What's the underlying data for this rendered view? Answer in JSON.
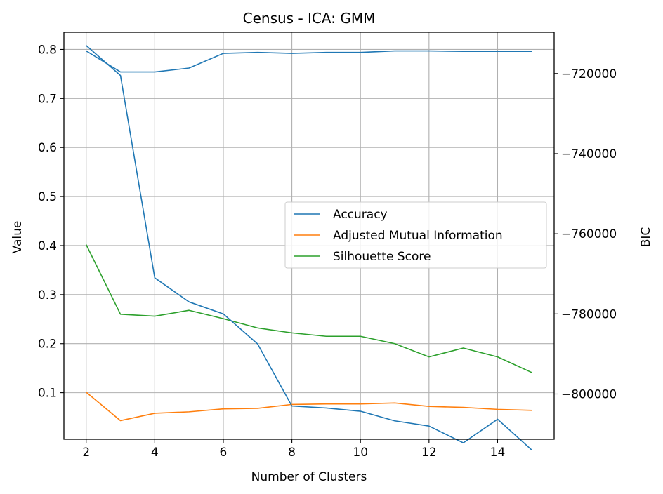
{
  "chart_data": {
    "type": "line",
    "title": "Census - ICA: GMM",
    "xlabel": "Number of Clusters",
    "ylabel": "Value",
    "y2label": "BIC",
    "x": [
      2,
      3,
      4,
      5,
      6,
      7,
      8,
      9,
      10,
      11,
      12,
      13,
      14,
      15
    ],
    "xlim": [
      1.35,
      15.65
    ],
    "ylim": [
      0.005,
      0.835
    ],
    "y2lim": [
      -811300,
      -709700
    ],
    "xticks": [
      "2",
      "4",
      "6",
      "8",
      "10",
      "12",
      "14"
    ],
    "xtick_values": [
      2,
      4,
      6,
      8,
      10,
      12,
      14
    ],
    "yticks": [
      "0.1",
      "0.2",
      "0.3",
      "0.4",
      "0.5",
      "0.6",
      "0.7",
      "0.8"
    ],
    "ytick_values": [
      0.1,
      0.2,
      0.3,
      0.4,
      0.5,
      0.6,
      0.7,
      0.8
    ],
    "y2ticks": [
      "−720000",
      "−740000",
      "−760000",
      "−780000",
      "−800000"
    ],
    "y2tick_values": [
      -720000,
      -740000,
      -760000,
      -780000,
      -800000
    ],
    "grid": true,
    "legend_position": "center-right",
    "series": [
      {
        "name": "Accuracy",
        "axis": "left",
        "color": "#1f77b4",
        "values": [
          0.797,
          0.754,
          0.754,
          0.762,
          0.792,
          0.794,
          0.792,
          0.794,
          0.794,
          0.797,
          0.797,
          0.796,
          0.796,
          0.796
        ]
      },
      {
        "name": "Adjusted Mutual Information",
        "axis": "left",
        "color": "#ff7f0e",
        "values": [
          0.101,
          0.043,
          0.058,
          0.061,
          0.067,
          0.068,
          0.076,
          0.077,
          0.077,
          0.079,
          0.072,
          0.07,
          0.066,
          0.064
        ]
      },
      {
        "name": "Silhouette Score",
        "axis": "left",
        "color": "#2ca02c",
        "values": [
          0.402,
          0.26,
          0.256,
          0.268,
          0.251,
          0.232,
          0.222,
          0.215,
          0.215,
          0.2,
          0.173,
          0.191,
          0.173,
          0.141
        ]
      },
      {
        "name": "BIC",
        "axis": "right",
        "color": "#1f77b4",
        "in_legend": false,
        "values": [
          -713000,
          -720500,
          -771000,
          -777000,
          -780000,
          -787500,
          -803000,
          -803500,
          -804300,
          -806700,
          -808000,
          -812200,
          -806300,
          -814000
        ]
      }
    ]
  }
}
